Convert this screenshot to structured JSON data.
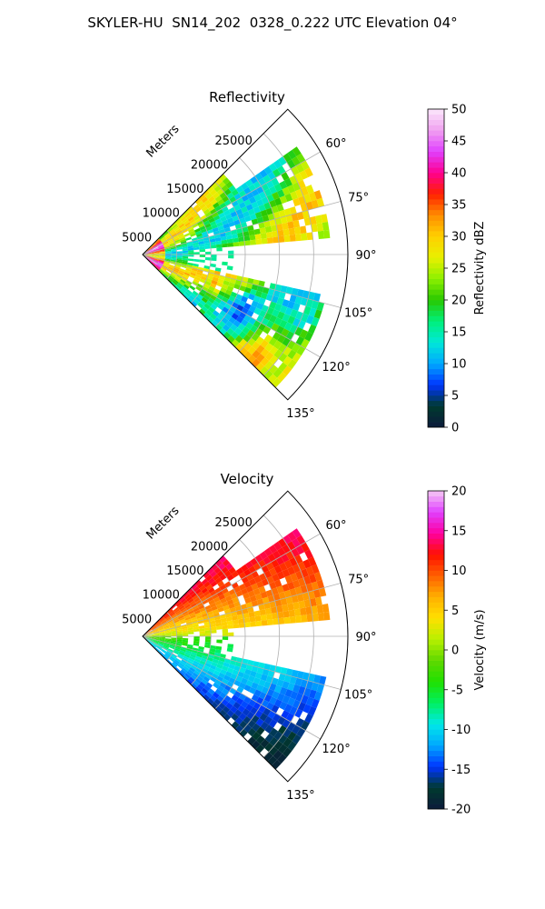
{
  "figure": {
    "title": "SKYLER-HU  SN14_202  0328_0.222 UTC Elevation 04°"
  },
  "chart_data": [
    {
      "type": "heatmap",
      "projection": "polar-sector",
      "title": "Reflectivity",
      "range_label": "Meters",
      "range_ticks": [
        5000,
        10000,
        15000,
        20000,
        25000
      ],
      "range_max": 30000,
      "azimuth_ticks": [
        "60°",
        "75°",
        "90°",
        "105°",
        "120°",
        "135°"
      ],
      "azimuth_range": [
        45,
        135
      ],
      "colorbar": {
        "label": "Reflectivity dBZ",
        "min": 0,
        "max": 50,
        "ticks": [
          0,
          5,
          10,
          15,
          20,
          25,
          30,
          35,
          40,
          45,
          50
        ]
      },
      "colors": [
        "#0b1a3a",
        "#003a2e",
        "#0034ff",
        "#00a8ff",
        "#00e8d8",
        "#00f07a",
        "#28c800",
        "#8cf000",
        "#e8f000",
        "#ffd000",
        "#ff8c00",
        "#ff2000",
        "#ff0090",
        "#e040ff",
        "#f0a0f0",
        "#fbe8fb"
      ]
    },
    {
      "type": "heatmap",
      "projection": "polar-sector",
      "title": "Velocity",
      "range_label": "Meters",
      "range_ticks": [
        5000,
        10000,
        15000,
        20000,
        25000
      ],
      "range_max": 30000,
      "azimuth_ticks": [
        "60°",
        "75°",
        "90°",
        "105°",
        "120°",
        "135°"
      ],
      "azimuth_range": [
        45,
        135
      ],
      "colorbar": {
        "label": "Velocity (m/s)",
        "min": -20,
        "max": 20,
        "ticks": [
          -20,
          -15,
          -10,
          -5,
          0,
          5,
          10,
          15,
          20
        ]
      },
      "colors": [
        "#0b1a3a",
        "#003a2e",
        "#0034ff",
        "#00a8ff",
        "#00e8e8",
        "#00f060",
        "#20e000",
        "#60d800",
        "#b8f000",
        "#ffe000",
        "#ffb000",
        "#ff6000",
        "#ff1000",
        "#ff00a0",
        "#e040ff",
        "#f4c8f4"
      ]
    }
  ]
}
